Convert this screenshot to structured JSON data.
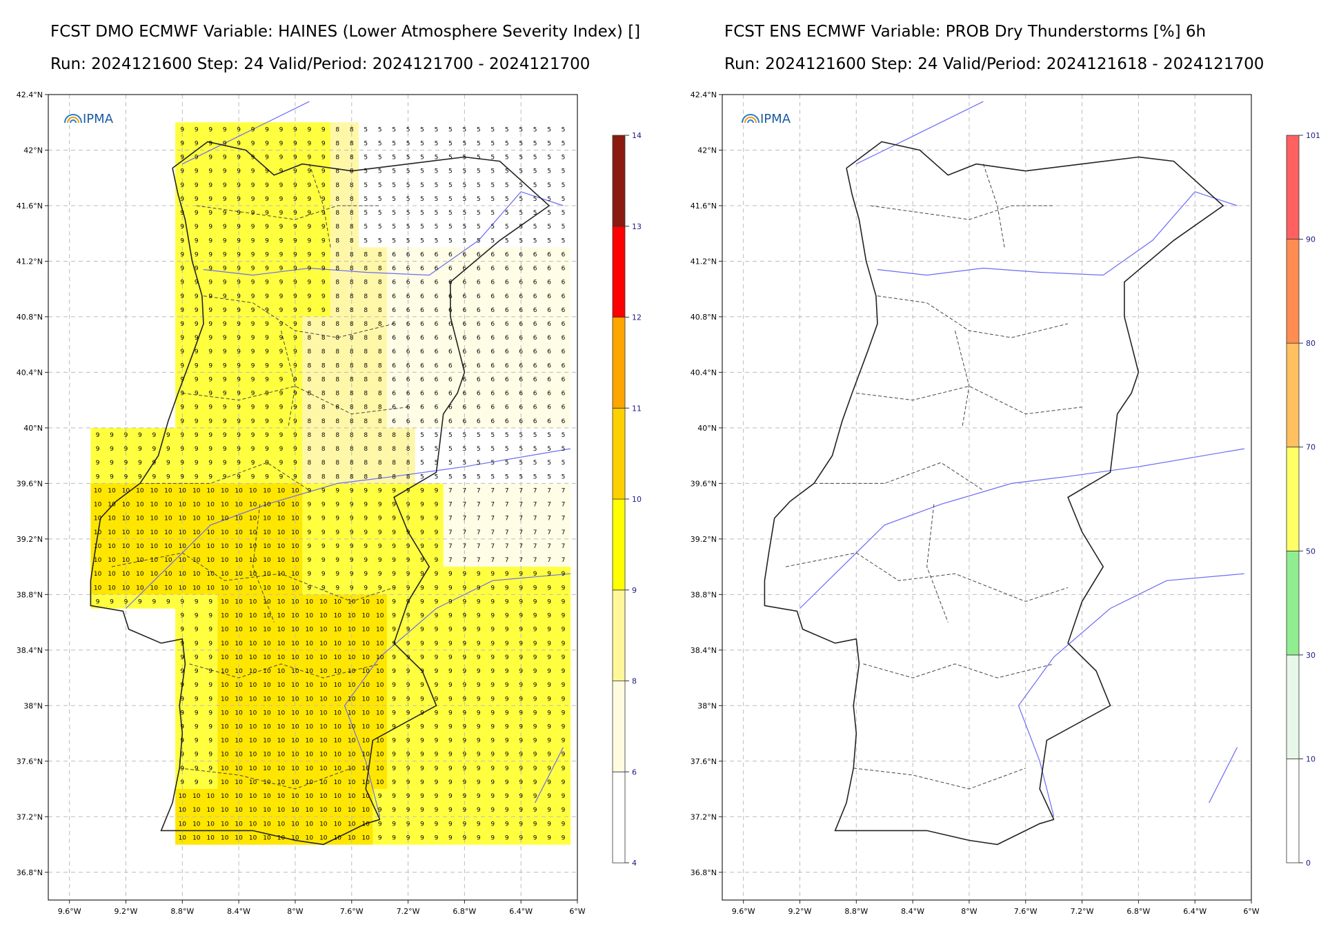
{
  "panels": [
    {
      "title": "FCST DMO ECMWF Variable: HAINES (Lower Atmosphere Severity Index) []",
      "subtitle": "Run: 2024121600 Step: 24 Valid/Period: 2024121700 - 2024121700",
      "logo": "IPMA",
      "lat_labels": [
        "42.4°N",
        "42°N",
        "41.6°N",
        "41.2°N",
        "40.8°N",
        "40.4°N",
        "40°N",
        "39.6°N",
        "39.2°N",
        "38.8°N",
        "38.4°N",
        "38°N",
        "37.6°N",
        "37.2°N",
        "36.8°N"
      ],
      "lon_labels": [
        "9.6°W",
        "9.2°W",
        "8.8°W",
        "8.4°W",
        "8°W",
        "7.6°W",
        "7.2°W",
        "6.8°W",
        "6.4°W",
        "6°W"
      ],
      "colorbar": {
        "ticks": [
          "4",
          "6",
          "8",
          "9",
          "10",
          "11",
          "12",
          "13",
          "14"
        ],
        "colors": [
          "#ffffff",
          "#fffbe0",
          "#fff799",
          "#ffff00",
          "#ffd000",
          "#ffa500",
          "#ff0000",
          "#8b1a10"
        ]
      }
    },
    {
      "title": "FCST ENS ECMWF Variable: PROB Dry Thunderstorms [%] 6h",
      "subtitle": "Run: 2024121600 Step: 24 Valid/Period: 2024121618 - 2024121700",
      "logo": "IPMA",
      "lat_labels": [
        "42.4°N",
        "42°N",
        "41.6°N",
        "41.2°N",
        "40.8°N",
        "40.4°N",
        "40°N",
        "39.6°N",
        "39.2°N",
        "38.8°N",
        "38.4°N",
        "38°N",
        "37.6°N",
        "37.2°N",
        "36.8°N"
      ],
      "lon_labels": [
        "9.6°W",
        "9.2°W",
        "8.8°W",
        "8.4°W",
        "8°W",
        "7.6°W",
        "7.2°W",
        "6.8°W",
        "6.4°W",
        "6°W"
      ],
      "colorbar": {
        "ticks": [
          "0",
          "10",
          "30",
          "50",
          "70",
          "80",
          "90",
          "101"
        ],
        "colors": [
          "#ffffff",
          "#e8f8e8",
          "#90ee90",
          "#ffff66",
          "#ffc060",
          "#ff8c50",
          "#ff6060"
        ]
      }
    }
  ],
  "colors": {
    "grid": "#bbbbbb",
    "coast": "#222222",
    "river": "#6a6af5",
    "district": "#444444",
    "cell_6": "#fffde6",
    "cell_8": "#fff7a8",
    "cell_9": "#ffff40",
    "cell_10": "#ffe600",
    "cell_11": "#ffd400"
  }
}
